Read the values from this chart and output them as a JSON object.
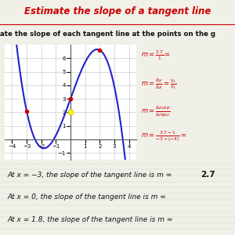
{
  "title": "Estimate the slope of a tangent line",
  "title_color": "#cc0000",
  "bg_color": "#f0f0e8",
  "curve_color": "#2222cc",
  "point_color": "#cc0000",
  "highlight_color": "#ffff00",
  "xlim": [
    -4.5,
    4.5
  ],
  "ylim": [
    -1.5,
    7
  ],
  "xticks": [
    -4,
    -3,
    -2,
    -1,
    1,
    2,
    3,
    4
  ],
  "yticks": [
    -1,
    1,
    2,
    3,
    4,
    5,
    6
  ],
  "highlight_point": [
    0,
    2
  ],
  "text_lines": [
    "At x = −3, the slope of the tangent line is m ≈ 2.7",
    "At x = 0, the slope of the tangent line is m ≈",
    "At x = 1.8, the slope of the tangent line is m ≈"
  ],
  "grid_color": "#cccccc",
  "plot_bg": "#ffffff"
}
